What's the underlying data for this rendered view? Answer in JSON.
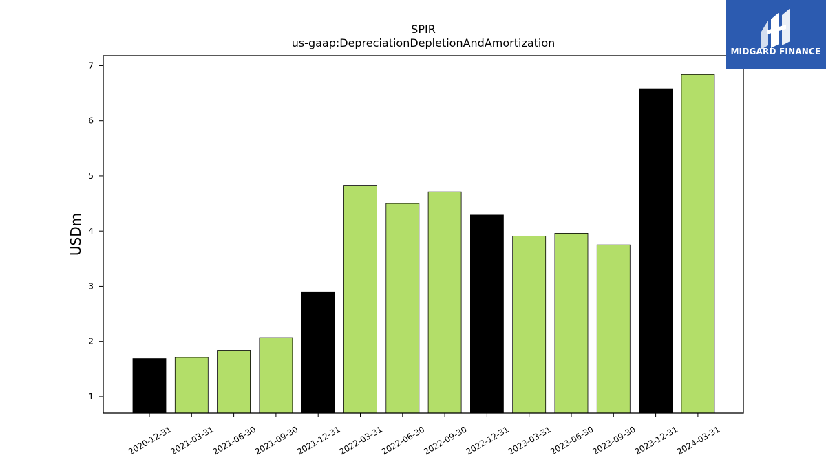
{
  "logo": {
    "text": "MIDGARD FINANCE",
    "background": "#2c5bb0"
  },
  "chart_data": {
    "type": "bar",
    "title": "SPIR",
    "subtitle": "us-gaap:DepreciationDepletionAndAmortization",
    "xlabel": "",
    "ylabel": "USDm",
    "ylim": [
      0.7,
      7.18
    ],
    "yticks": [
      1,
      2,
      3,
      4,
      5,
      6,
      7
    ],
    "grid": false,
    "categories": [
      "2020-12-31",
      "2021-03-31",
      "2021-06-30",
      "2021-09-30",
      "2021-12-31",
      "2022-03-31",
      "2022-06-30",
      "2022-09-30",
      "2022-12-31",
      "2023-03-31",
      "2023-06-30",
      "2023-09-30",
      "2023-12-31",
      "2024-03-31"
    ],
    "values": [
      1.69,
      1.71,
      1.84,
      2.07,
      2.89,
      4.83,
      4.5,
      4.71,
      4.29,
      3.91,
      3.96,
      3.75,
      6.58,
      6.84
    ],
    "bar_colors": [
      "#000000",
      "#b3de69",
      "#b3de69",
      "#b3de69",
      "#000000",
      "#b3de69",
      "#b3de69",
      "#b3de69",
      "#000000",
      "#b3de69",
      "#b3de69",
      "#b3de69",
      "#000000",
      "#b3de69"
    ]
  }
}
